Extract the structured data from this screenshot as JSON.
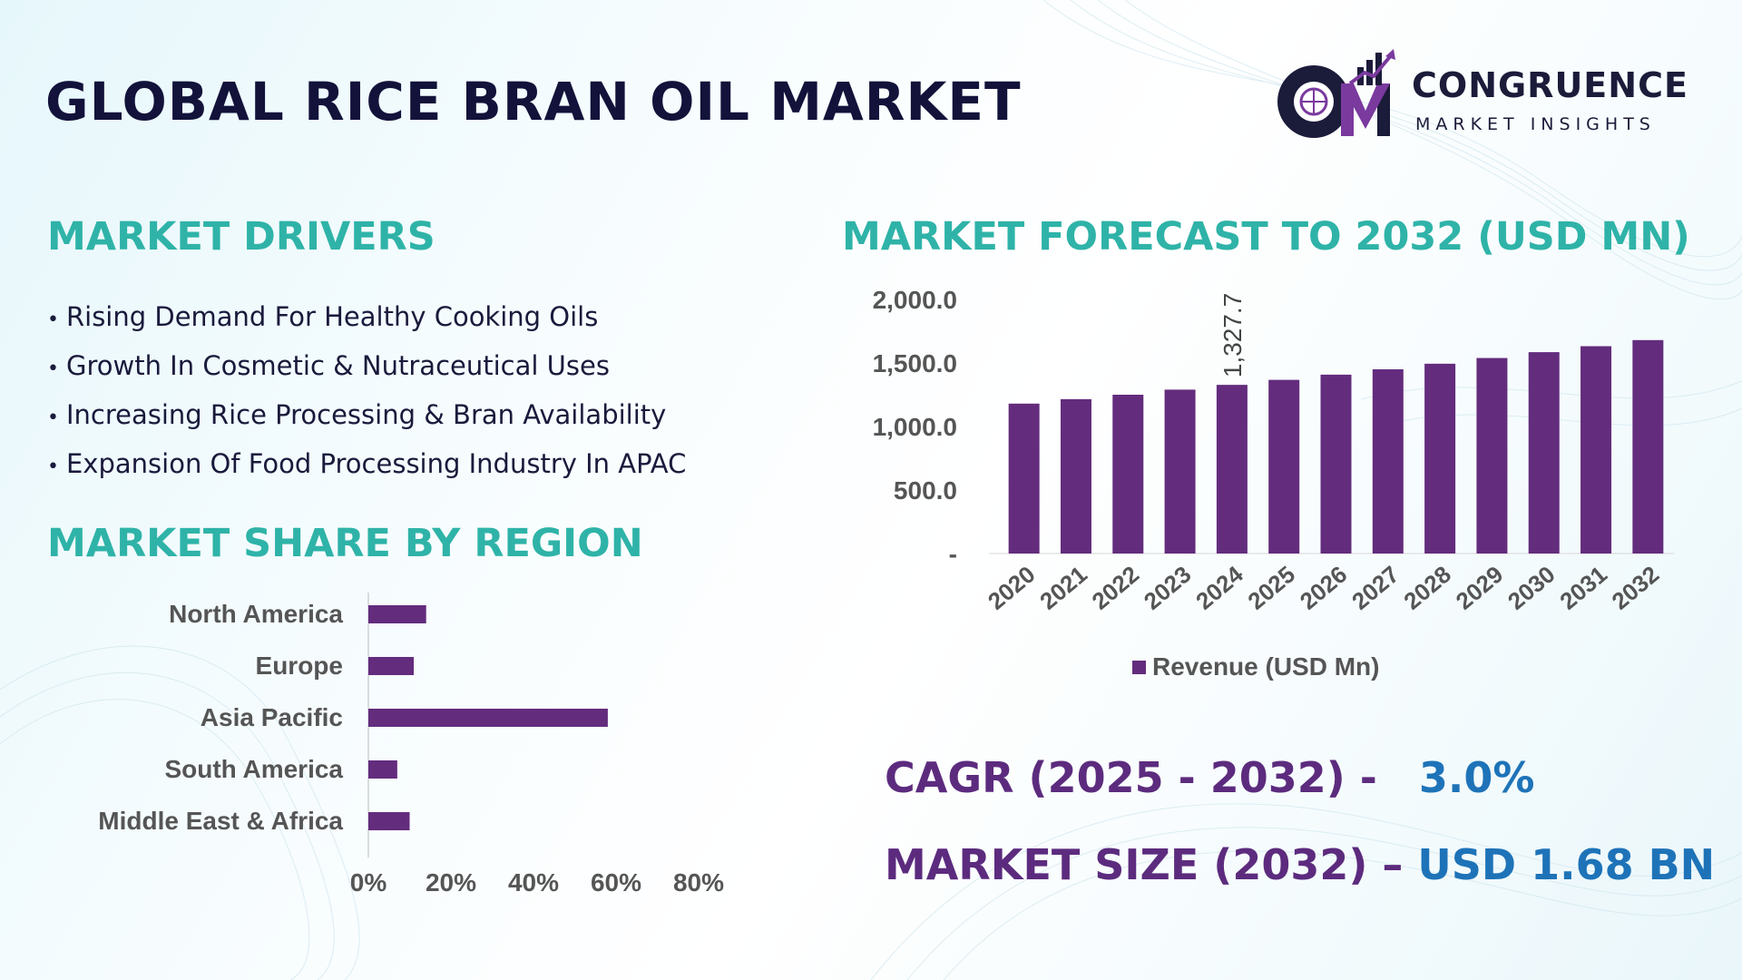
{
  "title": "GLOBAL RICE BRAN OIL MARKET",
  "logo": {
    "name": "CONGRUENCE",
    "tagline": "MARKET INSIGHTS",
    "mark_letters": "CM",
    "colors": {
      "primary": "#1b1b3a",
      "accent": "#7a3a9e"
    }
  },
  "drivers": {
    "heading": "MARKET DRIVERS",
    "items": [
      "Rising Demand For Healthy Cooking Oils",
      "Growth In Cosmetic & Nutraceutical Uses",
      "Increasing Rice Processing & Bran Availability",
      "Expansion Of Food Processing Industry In APAC"
    ]
  },
  "regions": {
    "heading": "MARKET SHARE BY REGION"
  },
  "forecast": {
    "heading": "MARKET FORECAST TO 2032 (USD MN)"
  },
  "stats": {
    "cagr_label": "CAGR (2025 - 2032) -",
    "cagr_value": "3.0%",
    "size_label": "MARKET SIZE (2032) –",
    "size_value": "USD 1.68 BN"
  },
  "colors": {
    "bar": "#632c7d",
    "heading": "#2fb3a8",
    "title": "#12123a",
    "stat_label": "#5c2b7e",
    "stat_value": "#1e73b8"
  },
  "chart_data": [
    {
      "type": "bar",
      "orientation": "horizontal",
      "categories": [
        "North America",
        "Europe",
        "Asia Pacific",
        "South America",
        "Middle East & Africa"
      ],
      "values": [
        14,
        11,
        58,
        7,
        10
      ],
      "unit": "%",
      "xlim": [
        0,
        80
      ],
      "xticks": [
        "0%",
        "20%",
        "40%",
        "60%",
        "80%"
      ],
      "grid": false,
      "color": "#632c7d"
    },
    {
      "type": "bar",
      "categories": [
        "2020",
        "2021",
        "2022",
        "2023",
        "2024",
        "2025",
        "2026",
        "2027",
        "2028",
        "2029",
        "2030",
        "2031",
        "2032"
      ],
      "series": [
        {
          "name": "Revenue (USD Mn)",
          "values": [
            1180,
            1215,
            1250,
            1290,
            1327.7,
            1367,
            1408,
            1450,
            1494,
            1539,
            1585,
            1632,
            1680
          ]
        }
      ],
      "data_labels": [
        {
          "category": "2024",
          "text": "1,327.7"
        }
      ],
      "ylim": [
        0,
        2000
      ],
      "yticks": [
        "-",
        "500.0",
        "1,000.0",
        "1,500.0",
        "2,000.0"
      ],
      "grid": false,
      "legend": "bottom",
      "color": "#632c7d"
    }
  ]
}
